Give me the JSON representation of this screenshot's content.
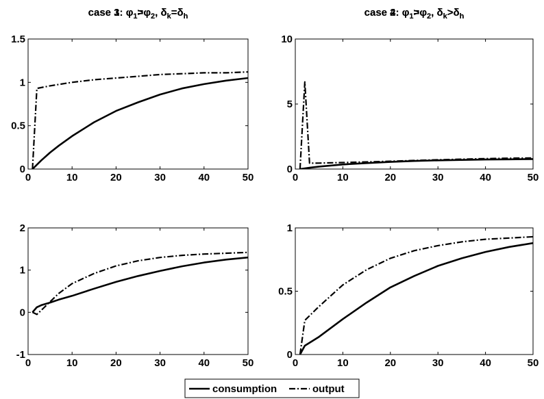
{
  "chart_data": [
    {
      "type": "line",
      "title": "case 1: φ₁=φ₂, δk=δh",
      "title_parts": {
        "prefix": "case 1: ",
        "phi1_sub": "1",
        "rel1": "=",
        "phi2_sub": "2",
        "sep": ", ",
        "delta1_sub": "k",
        "rel2": "=",
        "delta2_sub": "h"
      },
      "xlim": [
        0,
        50
      ],
      "ylim": [
        0,
        1.5
      ],
      "xticks": [
        0,
        10,
        20,
        30,
        40,
        50
      ],
      "yticks": [
        0,
        0.5,
        1,
        1.5
      ],
      "yticklabels": [
        "0",
        "0.5",
        "1",
        "1.5"
      ],
      "series": [
        {
          "name": "consumption",
          "style": "solid",
          "points": [
            [
              1,
              0
            ],
            [
              3,
              0.1
            ],
            [
              5,
              0.19
            ],
            [
              7,
              0.27
            ],
            [
              10,
              0.38
            ],
            [
              15,
              0.54
            ],
            [
              20,
              0.67
            ],
            [
              25,
              0.77
            ],
            [
              30,
              0.86
            ],
            [
              35,
              0.93
            ],
            [
              40,
              0.98
            ],
            [
              45,
              1.02
            ],
            [
              50,
              1.05
            ]
          ]
        },
        {
          "name": "output",
          "style": "dashdot",
          "points": [
            [
              1,
              0
            ],
            [
              2,
              0.93
            ],
            [
              5,
              0.96
            ],
            [
              10,
              1.0
            ],
            [
              15,
              1.03
            ],
            [
              20,
              1.05
            ],
            [
              25,
              1.07
            ],
            [
              30,
              1.09
            ],
            [
              35,
              1.1
            ],
            [
              40,
              1.11
            ],
            [
              45,
              1.11
            ],
            [
              50,
              1.12
            ]
          ]
        }
      ]
    },
    {
      "type": "line",
      "title": "case 2: φ₁=φ₂, δk>δh",
      "title_parts": {
        "prefix": "case 2: ",
        "phi1_sub": "1",
        "rel1": "=",
        "phi2_sub": "2",
        "sep": ", ",
        "delta1_sub": "k",
        "rel2": ">",
        "delta2_sub": "h"
      },
      "xlim": [
        0,
        50
      ],
      "ylim": [
        0,
        10
      ],
      "xticks": [
        0,
        10,
        20,
        30,
        40,
        50
      ],
      "yticks": [
        0,
        5,
        10
      ],
      "yticklabels": [
        "0",
        "5",
        "10"
      ],
      "series": [
        {
          "name": "consumption",
          "style": "solid",
          "points": [
            [
              1,
              0
            ],
            [
              3,
              0.1
            ],
            [
              5,
              0.19
            ],
            [
              10,
              0.35
            ],
            [
              15,
              0.46
            ],
            [
              20,
              0.55
            ],
            [
              25,
              0.62
            ],
            [
              30,
              0.67
            ],
            [
              35,
              0.7
            ],
            [
              40,
              0.73
            ],
            [
              45,
              0.75
            ],
            [
              50,
              0.77
            ]
          ]
        },
        {
          "name": "output",
          "style": "dashdot",
          "points": [
            [
              1,
              0
            ],
            [
              2,
              6.7
            ],
            [
              3,
              0.45
            ],
            [
              5,
              0.46
            ],
            [
              10,
              0.5
            ],
            [
              15,
              0.55
            ],
            [
              20,
              0.6
            ],
            [
              25,
              0.66
            ],
            [
              30,
              0.71
            ],
            [
              35,
              0.76
            ],
            [
              40,
              0.8
            ],
            [
              45,
              0.83
            ],
            [
              50,
              0.85
            ]
          ]
        }
      ]
    },
    {
      "type": "line",
      "title": "case 3: φ₁>φ₂, δk=δh",
      "title_parts": {
        "prefix": "case 3: ",
        "phi1_sub": "1",
        "rel1": ">",
        "phi2_sub": "2",
        "sep": ", ",
        "delta1_sub": "k",
        "rel2": "=",
        "delta2_sub": "h"
      },
      "xlim": [
        0,
        50
      ],
      "ylim": [
        -1,
        2
      ],
      "xticks": [
        0,
        10,
        20,
        30,
        40,
        50
      ],
      "yticks": [
        -1,
        0,
        1,
        2
      ],
      "yticklabels": [
        "-1",
        "0",
        "1",
        "2"
      ],
      "series": [
        {
          "name": "consumption",
          "style": "solid",
          "points": [
            [
              1,
              0
            ],
            [
              2,
              0.12
            ],
            [
              3,
              0.17
            ],
            [
              5,
              0.23
            ],
            [
              7,
              0.3
            ],
            [
              10,
              0.39
            ],
            [
              15,
              0.56
            ],
            [
              20,
              0.72
            ],
            [
              25,
              0.86
            ],
            [
              30,
              0.98
            ],
            [
              35,
              1.09
            ],
            [
              40,
              1.18
            ],
            [
              45,
              1.25
            ],
            [
              50,
              1.3
            ]
          ]
        },
        {
          "name": "output",
          "style": "dashdot",
          "points": [
            [
              1,
              0
            ],
            [
              2,
              -0.05
            ],
            [
              3,
              0.05
            ],
            [
              5,
              0.25
            ],
            [
              7,
              0.45
            ],
            [
              10,
              0.68
            ],
            [
              15,
              0.92
            ],
            [
              20,
              1.1
            ],
            [
              25,
              1.22
            ],
            [
              30,
              1.3
            ],
            [
              35,
              1.35
            ],
            [
              40,
              1.38
            ],
            [
              45,
              1.4
            ],
            [
              50,
              1.42
            ]
          ]
        }
      ]
    },
    {
      "type": "line",
      "title": "case 4: φ₁>φ₂, δk>δh",
      "title_parts": {
        "prefix": "case 4: ",
        "phi1_sub": "1",
        "rel1": ">",
        "phi2_sub": "2",
        "sep": ", ",
        "delta1_sub": "k",
        "rel2": ">",
        "delta2_sub": "h"
      },
      "xlim": [
        0,
        50
      ],
      "ylim": [
        0,
        1
      ],
      "xticks": [
        0,
        10,
        20,
        30,
        40,
        50
      ],
      "yticks": [
        0,
        0.5,
        1
      ],
      "yticklabels": [
        "0",
        "0.5",
        "1"
      ],
      "series": [
        {
          "name": "consumption",
          "style": "solid",
          "points": [
            [
              1,
              0
            ],
            [
              2,
              0.07
            ],
            [
              5,
              0.14
            ],
            [
              10,
              0.28
            ],
            [
              15,
              0.41
            ],
            [
              20,
              0.53
            ],
            [
              25,
              0.62
            ],
            [
              30,
              0.7
            ],
            [
              35,
              0.76
            ],
            [
              40,
              0.81
            ],
            [
              45,
              0.85
            ],
            [
              50,
              0.88
            ]
          ]
        },
        {
          "name": "output",
          "style": "dashdot",
          "points": [
            [
              1,
              0
            ],
            [
              2,
              0.27
            ],
            [
              5,
              0.38
            ],
            [
              10,
              0.55
            ],
            [
              15,
              0.67
            ],
            [
              20,
              0.76
            ],
            [
              25,
              0.82
            ],
            [
              30,
              0.86
            ],
            [
              35,
              0.89
            ],
            [
              40,
              0.91
            ],
            [
              45,
              0.92
            ],
            [
              50,
              0.93
            ]
          ]
        }
      ]
    }
  ],
  "legend": {
    "placement": "bottom-center",
    "items": [
      {
        "label": "consumption",
        "style": "solid"
      },
      {
        "label": "output",
        "style": "dashdot"
      }
    ]
  }
}
